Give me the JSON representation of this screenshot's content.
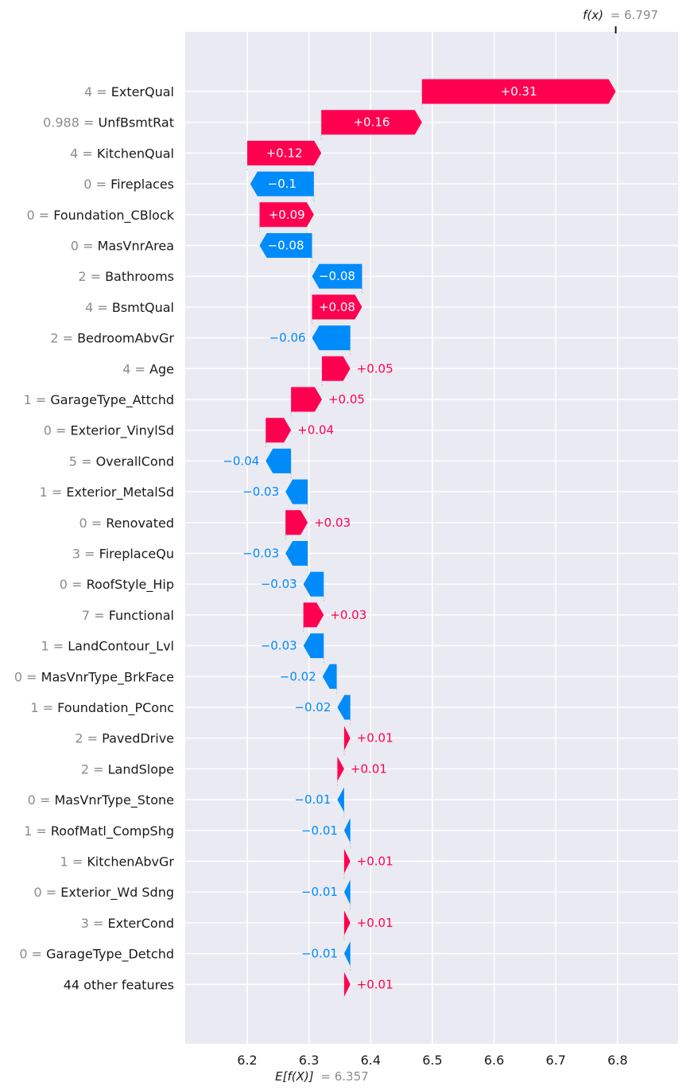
{
  "chart_data": {
    "type": "waterfall",
    "title": "",
    "xlabel": "",
    "ylabel": "",
    "xlim": [
      6.105,
      6.9
    ],
    "x_ticks": [
      "6.2",
      "6.3",
      "6.4",
      "6.5",
      "6.6",
      "6.7",
      "6.8"
    ],
    "x_tick_values": [
      6.2,
      6.3,
      6.4,
      6.5,
      6.6,
      6.7,
      6.8
    ],
    "fx": {
      "label": "f(x)",
      "value_text": "= 6.797",
      "value": 6.797
    },
    "efx": {
      "label": "E[f(X)]",
      "value_text": "= 6.357",
      "value": 6.357
    },
    "colors": {
      "positive": "#ff0051",
      "negative": "#008bfb",
      "background": "#eaeaf2",
      "grid": "#ffffff"
    },
    "features": [
      {
        "value": "4",
        "name": "ExterQual",
        "shap": 0.31,
        "label": "+0.31"
      },
      {
        "value": "0.988",
        "name": "UnfBsmtRat",
        "shap": 0.16,
        "label": "+0.16"
      },
      {
        "value": "4",
        "name": "KitchenQual",
        "shap": 0.12,
        "label": "+0.12"
      },
      {
        "value": "0",
        "name": "Fireplaces",
        "shap": -0.1,
        "label": "−0.1"
      },
      {
        "value": "0",
        "name": "Foundation_CBlock",
        "shap": 0.09,
        "label": "+0.09"
      },
      {
        "value": "0",
        "name": "MasVnrArea",
        "shap": -0.08,
        "label": "−0.08"
      },
      {
        "value": "2",
        "name": "Bathrooms",
        "shap": -0.08,
        "label": "−0.08"
      },
      {
        "value": "4",
        "name": "BsmtQual",
        "shap": 0.08,
        "label": "+0.08"
      },
      {
        "value": "2",
        "name": "BedroomAbvGr",
        "shap": -0.06,
        "label": "−0.06"
      },
      {
        "value": "4",
        "name": "Age",
        "shap": 0.05,
        "label": "+0.05"
      },
      {
        "value": "1",
        "name": "GarageType_Attchd",
        "shap": 0.05,
        "label": "+0.05"
      },
      {
        "value": "0",
        "name": "Exterior_VinylSd",
        "shap": 0.04,
        "label": "+0.04"
      },
      {
        "value": "5",
        "name": "OverallCond",
        "shap": -0.04,
        "label": "−0.04"
      },
      {
        "value": "1",
        "name": "Exterior_MetalSd",
        "shap": -0.03,
        "label": "−0.03"
      },
      {
        "value": "0",
        "name": "Renovated",
        "shap": 0.03,
        "label": "+0.03"
      },
      {
        "value": "3",
        "name": "FireplaceQu",
        "shap": -0.03,
        "label": "−0.03"
      },
      {
        "value": "0",
        "name": "RoofStyle_Hip",
        "shap": -0.03,
        "label": "−0.03"
      },
      {
        "value": "7",
        "name": "Functional",
        "shap": 0.03,
        "label": "+0.03"
      },
      {
        "value": "1",
        "name": "LandContour_Lvl",
        "shap": -0.03,
        "label": "−0.03"
      },
      {
        "value": "0",
        "name": "MasVnrType_BrkFace",
        "shap": -0.02,
        "label": "−0.02"
      },
      {
        "value": "1",
        "name": "Foundation_PConc",
        "shap": -0.02,
        "label": "−0.02"
      },
      {
        "value": "2",
        "name": "PavedDrive",
        "shap": 0.01,
        "label": "+0.01"
      },
      {
        "value": "2",
        "name": "LandSlope",
        "shap": 0.01,
        "label": "+0.01"
      },
      {
        "value": "0",
        "name": "MasVnrType_Stone",
        "shap": -0.01,
        "label": "−0.01"
      },
      {
        "value": "1",
        "name": "RoofMatl_CompShg",
        "shap": -0.01,
        "label": "−0.01"
      },
      {
        "value": "1",
        "name": "KitchenAbvGr",
        "shap": 0.01,
        "label": "+0.01"
      },
      {
        "value": "0",
        "name": "Exterior_Wd Sdng",
        "shap": -0.01,
        "label": "−0.01"
      },
      {
        "value": "3",
        "name": "ExterCond",
        "shap": 0.01,
        "label": "+0.01"
      },
      {
        "value": "0",
        "name": "GarageType_Detchd",
        "shap": -0.01,
        "label": "−0.01"
      },
      {
        "value": "",
        "name": "44 other features",
        "shap": 0.01,
        "label": "+0.01"
      }
    ],
    "bar_extents": [
      [
        6.483,
        6.797
      ],
      [
        6.32,
        6.483
      ],
      [
        6.2,
        6.32
      ],
      [
        6.205,
        6.308
      ],
      [
        6.22,
        6.308
      ],
      [
        6.22,
        6.305
      ],
      [
        6.305,
        6.386
      ],
      [
        6.305,
        6.386
      ],
      [
        6.305,
        6.367
      ],
      [
        6.321,
        6.367
      ],
      [
        6.271,
        6.321
      ],
      [
        6.23,
        6.271
      ],
      [
        6.23,
        6.271
      ],
      [
        6.262,
        6.298
      ],
      [
        6.262,
        6.298
      ],
      [
        6.262,
        6.298
      ],
      [
        6.291,
        6.324
      ],
      [
        6.291,
        6.324
      ],
      [
        6.291,
        6.324
      ],
      [
        6.322,
        6.345
      ],
      [
        6.346,
        6.367
      ],
      [
        6.357,
        6.367
      ],
      [
        6.346,
        6.357
      ],
      [
        6.346,
        6.357
      ],
      [
        6.357,
        6.367
      ],
      [
        6.357,
        6.367
      ],
      [
        6.357,
        6.367
      ],
      [
        6.357,
        6.367
      ],
      [
        6.357,
        6.367
      ],
      [
        6.357,
        6.367
      ]
    ]
  }
}
